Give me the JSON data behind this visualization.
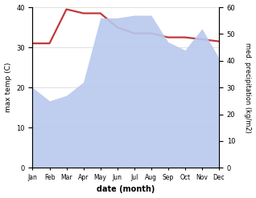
{
  "months": [
    "Jan",
    "Feb",
    "Mar",
    "Apr",
    "May",
    "Jun",
    "Jul",
    "Aug",
    "Sep",
    "Oct",
    "Nov",
    "Dec"
  ],
  "month_indices": [
    0,
    1,
    2,
    3,
    4,
    5,
    6,
    7,
    8,
    9,
    10,
    11
  ],
  "temp_max": [
    31.0,
    31.0,
    39.5,
    38.5,
    38.5,
    35.0,
    33.5,
    33.5,
    32.5,
    32.5,
    32.0,
    31.5
  ],
  "precip": [
    30,
    25,
    27,
    32,
    56,
    56,
    57,
    57,
    47,
    44,
    52,
    41
  ],
  "temp_ylim": [
    0,
    40
  ],
  "precip_ylim": [
    0,
    60
  ],
  "temp_color": "#c0383a",
  "precip_fill_color": "#b8c8ee",
  "precip_fill_alpha": 0.9,
  "xlabel": "date (month)",
  "ylabel_left": "max temp (C)",
  "ylabel_right": "med. precipitation (kg/m2)",
  "background_color": "#ffffff"
}
